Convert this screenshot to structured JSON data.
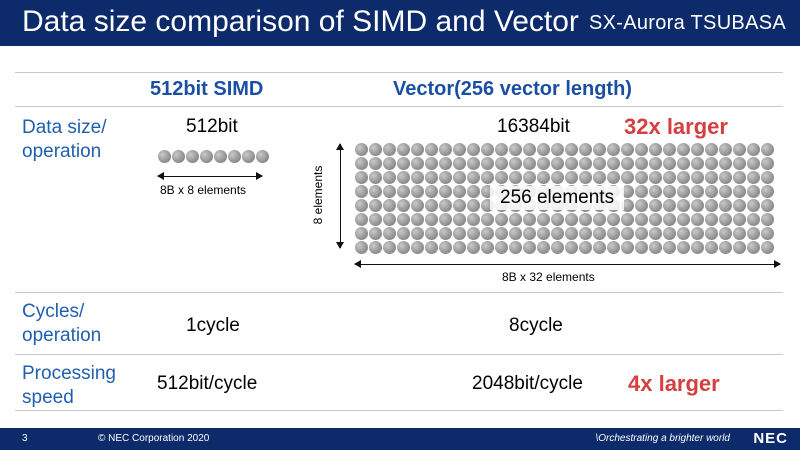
{
  "header": {
    "title": "Data size comparison of SIMD and Vector",
    "brand": "SX-Aurora TSUBASA"
  },
  "columns": {
    "simd": "512bit SIMD",
    "vector": "Vector(256 vector length)"
  },
  "rows": {
    "data_size": {
      "label_line1": "Data size/",
      "label_line2": "operation",
      "simd_value": "512bit",
      "simd_caption": "8B x 8 elements",
      "vector_value": "16384bit",
      "vector_emphasis": "32x larger",
      "vector_overlay": "256 elements",
      "vector_side_caption": "8 elements",
      "vector_bottom_caption": "8B x 32 elements"
    },
    "cycles": {
      "label_line1": "Cycles/",
      "label_line2": "operation",
      "simd_value": "1cycle",
      "vector_value": "8cycle"
    },
    "speed": {
      "label_line1": "Processing",
      "label_line2": "speed",
      "simd_value": "512bit/cycle",
      "vector_value": "2048bit/cycle",
      "vector_emphasis": "4x larger"
    }
  },
  "footer": {
    "page_number": "3",
    "copyright": "© NEC Corporation 2020",
    "tagline": "\\Orchestrating a brighter world",
    "logo": "NEC"
  },
  "colors": {
    "header_bg": "#0d2a6b",
    "label_blue": "#1f5fb0",
    "emphasis_red": "#d43f3f"
  }
}
